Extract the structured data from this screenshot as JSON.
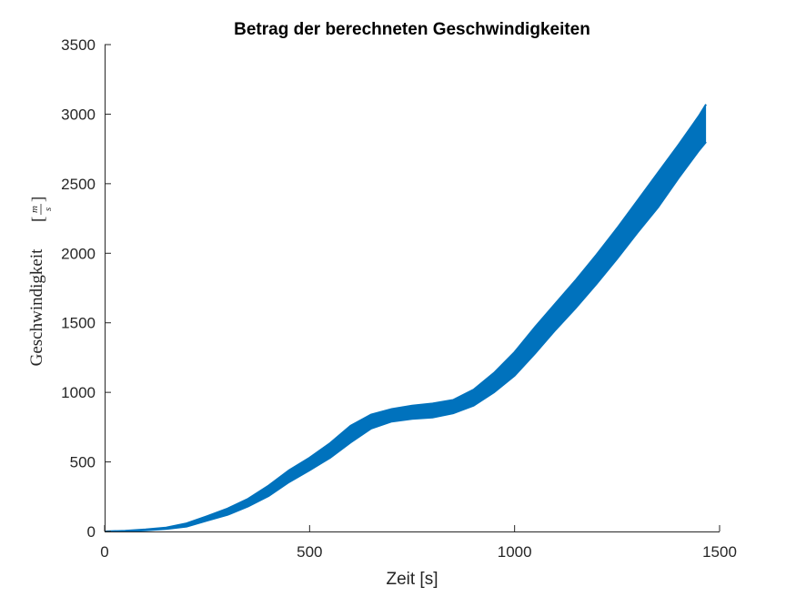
{
  "chart_data": {
    "type": "line",
    "title": "Betrag der berechneten Geschwindigkeiten",
    "xlabel": "Zeit [s]",
    "ylabel": "Geschwindigkeit",
    "ylabel_unit": "m/s",
    "ylabel_unit_num": "m",
    "ylabel_unit_den": "s",
    "xlim": [
      0,
      1500
    ],
    "ylim": [
      0,
      3500
    ],
    "xticks": [
      0,
      500,
      1000,
      1500
    ],
    "yticks": [
      0,
      500,
      1000,
      1500,
      2000,
      2500,
      3000,
      3500
    ],
    "grid": false,
    "series_color": "#0072BD",
    "series": [
      {
        "x": [
          0,
          50,
          100,
          150,
          200,
          250,
          300,
          350,
          400,
          450,
          500,
          550,
          600,
          650,
          700,
          750,
          800,
          850,
          900,
          950,
          1000,
          1050,
          1100,
          1150,
          1200,
          1250,
          1300,
          1350,
          1400,
          1450,
          1467
        ],
        "upper": [
          0,
          5,
          15,
          28,
          58,
          110,
          165,
          235,
          330,
          440,
          530,
          635,
          760,
          840,
          880,
          905,
          920,
          945,
          1020,
          1140,
          1290,
          1470,
          1640,
          1810,
          1990,
          2180,
          2380,
          2580,
          2780,
          2990,
          3070
        ],
        "lower": [
          0,
          2,
          8,
          18,
          35,
          78,
          120,
          180,
          255,
          355,
          440,
          530,
          640,
          740,
          790,
          810,
          820,
          850,
          905,
          1000,
          1120,
          1280,
          1450,
          1610,
          1780,
          1960,
          2150,
          2330,
          2540,
          2740,
          2800
        ]
      }
    ]
  }
}
